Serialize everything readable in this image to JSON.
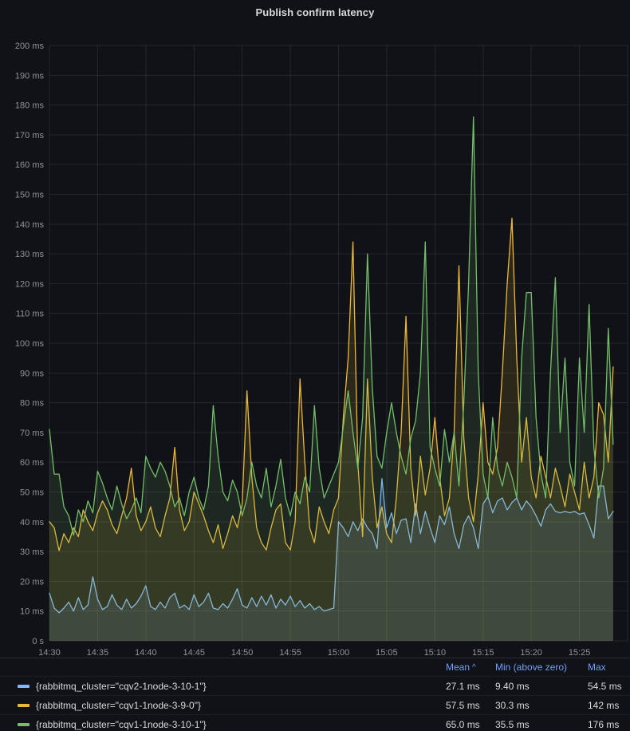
{
  "panel": {
    "title": "Publish confirm latency"
  },
  "colors": {
    "background": "#111217",
    "grid": "rgba(204,204,220,0.11)",
    "axis_text": "rgba(204,204,220,0.68)",
    "title_text": "#d8d9da",
    "legend_header": "#6e9fff",
    "series_blue": "#7EB6FF",
    "series_yellow": "#EAB839",
    "series_green": "#73BF69"
  },
  "y_axis": {
    "ticks": [
      {
        "v": 0,
        "label": "0 s"
      },
      {
        "v": 10,
        "label": "10 ms"
      },
      {
        "v": 20,
        "label": "20 ms"
      },
      {
        "v": 30,
        "label": "30 ms"
      },
      {
        "v": 40,
        "label": "40 ms"
      },
      {
        "v": 50,
        "label": "50 ms"
      },
      {
        "v": 60,
        "label": "60 ms"
      },
      {
        "v": 70,
        "label": "70 ms"
      },
      {
        "v": 80,
        "label": "80 ms"
      },
      {
        "v": 90,
        "label": "90 ms"
      },
      {
        "v": 100,
        "label": "100 ms"
      },
      {
        "v": 110,
        "label": "110 ms"
      },
      {
        "v": 120,
        "label": "120 ms"
      },
      {
        "v": 130,
        "label": "130 ms"
      },
      {
        "v": 140,
        "label": "140 ms"
      },
      {
        "v": 150,
        "label": "150 ms"
      },
      {
        "v": 160,
        "label": "160 ms"
      },
      {
        "v": 170,
        "label": "170 ms"
      },
      {
        "v": 180,
        "label": "180 ms"
      },
      {
        "v": 190,
        "label": "190 ms"
      },
      {
        "v": 200,
        "label": "200 ms"
      }
    ]
  },
  "x_axis": {
    "tick_labels": [
      "14:30",
      "14:35",
      "14:40",
      "14:45",
      "14:50",
      "14:55",
      "15:00",
      "15:05",
      "15:10",
      "15:15",
      "15:20",
      "15:25"
    ],
    "minutes_per_tick": 5,
    "gridline_count": 13
  },
  "legend": {
    "columns": [
      {
        "label": "Mean",
        "sort_caret": "^"
      },
      {
        "label": "Min (above zero)"
      },
      {
        "label": "Max"
      }
    ],
    "rows": [
      {
        "label": "{rabbitmq_cluster=\"cqv2-1node-3-10-1\"}",
        "color": "#7EB6FF",
        "mean": "27.1 ms",
        "min": "9.40 ms",
        "max": "54.5 ms"
      },
      {
        "label": "{rabbitmq_cluster=\"cqv1-1node-3-9-0\"}",
        "color": "#EAB839",
        "mean": "57.5 ms",
        "min": "30.3 ms",
        "max": "142 ms"
      },
      {
        "label": "{rabbitmq_cluster=\"cqv1-1node-3-10-1\"}",
        "color": "#73BF69",
        "mean": "65.0 ms",
        "min": "35.5 ms",
        "max": "176 ms"
      }
    ]
  },
  "chart_data": {
    "type": "line",
    "title": "Publish confirm latency",
    "xlabel": "",
    "ylabel": "",
    "unit": "ms",
    "ylim": [
      0,
      200
    ],
    "x_start": "14:30",
    "x_axis_end": "15:30",
    "step_seconds": 30,
    "grid": true,
    "legend_position": "bottom-table",
    "fill_opacity": 0.13,
    "x_tick_labels": [
      "14:30",
      "14:35",
      "14:40",
      "14:45",
      "14:50",
      "14:55",
      "15:00",
      "15:05",
      "15:10",
      "15:15",
      "15:20",
      "15:25"
    ],
    "series": [
      {
        "name": "{rabbitmq_cluster=\"cqv2-1node-3-10-1\"}",
        "color": "#7EB6FF",
        "mean_ms": 27.1,
        "min_ms": 9.4,
        "max_ms": 54.5,
        "values": [
          16,
          11,
          9.4,
          11,
          13,
          10,
          14.5,
          10.5,
          12,
          21.5,
          14,
          10.5,
          11.5,
          15.5,
          12,
          10.5,
          14,
          11,
          12.5,
          15,
          18.5,
          11.5,
          10.5,
          13,
          11,
          14.5,
          16,
          11,
          12,
          10.5,
          15.5,
          11.5,
          13,
          16,
          11,
          10.5,
          12.5,
          11,
          14,
          17.5,
          12,
          11,
          14.5,
          11.5,
          15,
          12,
          15.5,
          11,
          14,
          12,
          15,
          11.5,
          13.5,
          11,
          12.5,
          10.5,
          11.5,
          10,
          10.5,
          11,
          40,
          38,
          35,
          40,
          37,
          41,
          38,
          36,
          31,
          54.5,
          38,
          43,
          36,
          40.5,
          41,
          33,
          46,
          36,
          43.5,
          38,
          33,
          42,
          39,
          45,
          36,
          31,
          39,
          42,
          38,
          31,
          46,
          48.5,
          43,
          47,
          48,
          44,
          46.5,
          48,
          44,
          47,
          45,
          42,
          38.5,
          44,
          46,
          43.5,
          43,
          43.5,
          43,
          43.5,
          42.5,
          43,
          39,
          34.5,
          52,
          52,
          41,
          43.5
        ]
      },
      {
        "name": "{rabbitmq_cluster=\"cqv1-1node-3-9-0\"}",
        "color": "#EAB839",
        "mean_ms": 57.5,
        "min_ms": 30.3,
        "max_ms": 142,
        "values": [
          40,
          38,
          30.3,
          36,
          33,
          38,
          35,
          44,
          40,
          37,
          43,
          47,
          44,
          39,
          36,
          42,
          48,
          58,
          42,
          37,
          40,
          45,
          38,
          35,
          42,
          48,
          65,
          44,
          37,
          40,
          50,
          46,
          42,
          37,
          33,
          39,
          31,
          36,
          42,
          38,
          46,
          84,
          55,
          38,
          33,
          30.5,
          38,
          44,
          46,
          33,
          30.5,
          40,
          88,
          60,
          38,
          33,
          45,
          40,
          36,
          44,
          48,
          75,
          95,
          134,
          60,
          35,
          88,
          55,
          38,
          45,
          36,
          33,
          48,
          70,
          109,
          58,
          42,
          62,
          49,
          58,
          75,
          55,
          42,
          48,
          70,
          126,
          68,
          48,
          40,
          56,
          80,
          60,
          56,
          65,
          90,
          120,
          142,
          95,
          60,
          75,
          55,
          48,
          62,
          55,
          48,
          58,
          52,
          45,
          56,
          50,
          44,
          60,
          48,
          55,
          80,
          76,
          60,
          92
        ]
      },
      {
        "name": "{rabbitmq_cluster=\"cqv1-1node-3-10-1\"}",
        "color": "#73BF69",
        "mean_ms": 65.0,
        "min_ms": 35.5,
        "max_ms": 176,
        "values": [
          71,
          56,
          56,
          45,
          42,
          35.5,
          44,
          40,
          47,
          43,
          57,
          53,
          48,
          44,
          52,
          46,
          41,
          44,
          48,
          43,
          62,
          58,
          55,
          60,
          57,
          52,
          45,
          48,
          42,
          50,
          55,
          48,
          44,
          52,
          79,
          62,
          50,
          47,
          54,
          50,
          42,
          48,
          60,
          52,
          48,
          58,
          45,
          52,
          61,
          48,
          42,
          50,
          46,
          55,
          50,
          79,
          58,
          48,
          52,
          56,
          60,
          72,
          84,
          70,
          58,
          75,
          130,
          85,
          62,
          58,
          70,
          80,
          70,
          62,
          56,
          68,
          74,
          90,
          134,
          65,
          58,
          52,
          71,
          60,
          70,
          52,
          80,
          120,
          176,
          90,
          56,
          48,
          75,
          58,
          52,
          60,
          55,
          48,
          95,
          117,
          117,
          75,
          56,
          48,
          90,
          122,
          70,
          95,
          60,
          52,
          95,
          70,
          113,
          65,
          48,
          58,
          105,
          66
        ]
      }
    ]
  }
}
